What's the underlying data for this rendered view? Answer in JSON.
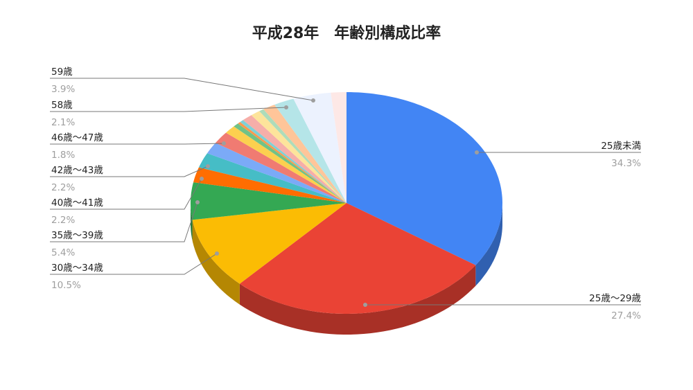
{
  "chart_data": {
    "type": "pie",
    "style": "3d",
    "title": "平成28年　年齢別構成比率",
    "start_angle": "top, clockwise",
    "legend": "labeled leader lines",
    "slices": [
      {
        "label": "25歳未満",
        "value": 34.3,
        "pct_label": "34.3%",
        "color": "#4285f4"
      },
      {
        "label": "25歳～29歳",
        "value": 27.4,
        "pct_label": "27.4%",
        "color": "#ea4335"
      },
      {
        "label": "30歳～34歳",
        "value": 10.5,
        "pct_label": "10.5%",
        "color": "#fbbc04"
      },
      {
        "label": "35歳～39歳",
        "value": 5.4,
        "pct_label": "5.4%",
        "color": "#34a853"
      },
      {
        "label": "40歳～41歳",
        "value": 2.2,
        "pct_label": "2.2%",
        "color": "#ff6d01"
      },
      {
        "label": "42歳～43歳",
        "value": 2.2,
        "pct_label": "2.2%",
        "color": "#46bdc6"
      },
      {
        "label": "",
        "value": 1.7,
        "pct_label": "",
        "color": "#7baaf7"
      },
      {
        "label": "46歳～47歳",
        "value": 1.8,
        "pct_label": "1.8%",
        "color": "#f07b72"
      },
      {
        "label": "",
        "value": 1.2,
        "pct_label": "",
        "color": "#fcd04f"
      },
      {
        "label": "",
        "value": 0.6,
        "pct_label": "",
        "color": "#71c287"
      },
      {
        "label": "",
        "value": 0.3,
        "pct_label": "",
        "color": "#ff994d"
      },
      {
        "label": "",
        "value": 0.4,
        "pct_label": "",
        "color": "#7ed1d7"
      },
      {
        "label": "",
        "value": 1.1,
        "pct_label": "",
        "color": "#f6aea9"
      },
      {
        "label": "",
        "value": 1.0,
        "pct_label": "",
        "color": "#fde49b"
      },
      {
        "label": "",
        "value": 0.5,
        "pct_label": "",
        "color": "#aedcba"
      },
      {
        "label": "",
        "value": 1.3,
        "pct_label": "",
        "color": "#ffc599"
      },
      {
        "label": "58歳",
        "value": 2.1,
        "pct_label": "2.1%",
        "color": "#b5e5e8"
      },
      {
        "label": "59歳",
        "value": 3.9,
        "pct_label": "3.9%",
        "color": "#ecf2fe"
      },
      {
        "label": "",
        "value": 1.6,
        "pct_label": "",
        "color": "#fde8e6"
      }
    ]
  }
}
